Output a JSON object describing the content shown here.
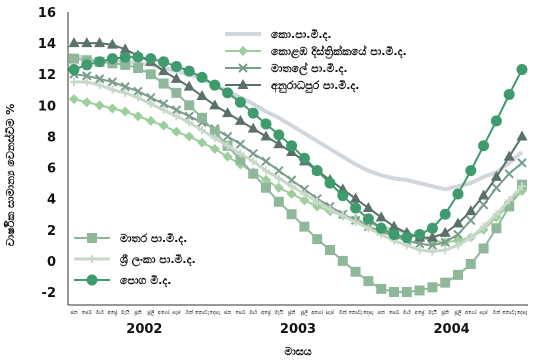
{
  "chart_data": {
    "type": "line",
    "xlabel": "මාසය",
    "ylabel": "වාර්ෂික සාමාන්‍ය වෙනස්වීම %",
    "ylim": [
      -2,
      16
    ],
    "yticks": [
      "-2",
      "0",
      "2",
      "4",
      "6",
      "8",
      "10",
      "12",
      "14",
      "16"
    ],
    "years": [
      "2002",
      "2003",
      "2004"
    ],
    "month_labels": [
      "ජන",
      "පෙබ",
      "මාර්",
      "අප්‍රේ",
      "මැයි",
      "ජූනි",
      "ජූලි",
      "අගෝ",
      "සැප්",
      "ඔක්",
      "නොවැ",
      "දෙසැ",
      "ජන",
      "පෙබ",
      "මාර්",
      "අප්‍රේ",
      "මැයි",
      "ජූනි",
      "ජූලි",
      "අගෝ",
      "සැප්",
      "ඔක්",
      "නොවැ",
      "දෙසැ",
      "ජන",
      "පෙබ",
      "මාර්",
      "අප්‍රේ",
      "මැයි",
      "ජූනි",
      "ජූලි",
      "අගෝ",
      "සැප්",
      "ඔක්",
      "නොවැ",
      "දෙසැ"
    ],
    "grid": false,
    "series": [
      {
        "name": "කො.පා.මි.ද.",
        "color": "#d0d6dc",
        "marker": "none",
        "width": 4,
        "values": [
          13.2,
          13.0,
          12.8,
          12.9,
          12.8,
          12.7,
          12.6,
          12.4,
          12.2,
          12.0,
          11.7,
          11.3,
          10.9,
          10.5,
          10.1,
          9.6,
          9.2,
          8.7,
          8.2,
          7.7,
          7.2,
          6.7,
          6.2,
          5.8,
          5.5,
          5.3,
          5.2,
          5.0,
          4.8,
          4.6,
          4.8,
          5.0,
          5.4,
          5.7,
          6.3,
          7.0
        ]
      },
      {
        "name": "කොළඹ දිස්ත්‍රික්කයේ පා.මි.ද.",
        "color": "#9ccf9c",
        "marker": "diamond",
        "width": 2,
        "values": [
          10.4,
          10.2,
          10.0,
          9.8,
          9.6,
          9.3,
          9.0,
          8.7,
          8.3,
          8.0,
          7.6,
          7.2,
          6.7,
          6.2,
          5.7,
          5.2,
          4.7,
          4.3,
          3.9,
          3.5,
          3.2,
          2.9,
          2.7,
          2.4,
          2.2,
          2.0,
          1.8,
          1.5,
          1.3,
          1.2,
          1.3,
          1.5,
          2.0,
          2.8,
          3.6,
          4.5
        ]
      },
      {
        "name": "මාතලේ පා.මි.ද.",
        "color": "#7a9d8c",
        "marker": "x",
        "width": 2,
        "values": [
          12.0,
          11.9,
          11.7,
          11.5,
          11.2,
          10.9,
          10.5,
          10.1,
          9.7,
          9.3,
          8.9,
          8.5,
          8.0,
          7.5,
          6.9,
          6.4,
          5.8,
          5.2,
          4.6,
          4.0,
          3.5,
          3.0,
          2.6,
          2.2,
          1.9,
          1.6,
          1.3,
          1.1,
          1.0,
          1.2,
          1.7,
          2.6,
          3.6,
          4.7,
          5.6,
          6.3
        ]
      },
      {
        "name": "අනුරාධපුර පා.මි.ද.",
        "color": "#5a7068",
        "marker": "triangle",
        "width": 2,
        "values": [
          14.0,
          14.0,
          14.0,
          13.9,
          13.6,
          13.2,
          12.8,
          12.2,
          11.7,
          11.2,
          10.6,
          10.0,
          9.5,
          9.0,
          8.5,
          8.0,
          7.5,
          7.0,
          6.4,
          5.8,
          5.2,
          4.6,
          4.0,
          3.4,
          2.8,
          2.2,
          1.8,
          1.5,
          1.5,
          1.8,
          2.4,
          3.2,
          4.2,
          5.4,
          6.7,
          8.0
        ]
      },
      {
        "name": "මාතර පා.මි.ද.",
        "color": "#8fb89a",
        "marker": "square",
        "width": 2,
        "values": [
          13.0,
          12.9,
          12.8,
          12.7,
          12.6,
          12.4,
          12.0,
          11.4,
          10.8,
          10.0,
          9.2,
          8.3,
          7.4,
          6.5,
          5.6,
          4.7,
          3.8,
          3.0,
          2.2,
          1.4,
          0.7,
          0.0,
          -0.7,
          -1.3,
          -1.8,
          -2.0,
          -2.0,
          -1.9,
          -1.7,
          -1.4,
          -0.9,
          -0.2,
          0.8,
          2.1,
          3.5,
          4.9
        ]
      },
      {
        "name": "ශ්‍රී ලංකා පා.මි.ද.",
        "color": "#c9d9c9",
        "marker": "plus",
        "width": 3,
        "values": [
          11.5,
          11.5,
          11.3,
          11.0,
          10.8,
          10.5,
          10.1,
          9.7,
          9.3,
          8.9,
          8.4,
          7.9,
          7.4,
          6.9,
          6.4,
          5.8,
          5.3,
          4.8,
          4.3,
          3.8,
          3.3,
          2.9,
          2.5,
          2.1,
          1.7,
          1.3,
          1.0,
          0.7,
          0.6,
          0.7,
          1.0,
          1.5,
          2.2,
          3.0,
          3.9,
          4.8
        ]
      },
      {
        "name": "පොග මි.ද.",
        "color": "#3f9a6e",
        "marker": "circle",
        "width": 2,
        "values": [
          12.3,
          12.6,
          12.8,
          13.0,
          13.1,
          13.1,
          13.0,
          12.8,
          12.5,
          12.2,
          11.8,
          11.3,
          10.8,
          10.2,
          9.5,
          8.8,
          8.1,
          7.4,
          6.6,
          5.8,
          5.0,
          4.2,
          3.4,
          2.7,
          2.1,
          1.7,
          1.5,
          1.7,
          2.1,
          3.0,
          4.3,
          5.8,
          7.4,
          9.0,
          10.7,
          12.3
        ]
      }
    ]
  }
}
